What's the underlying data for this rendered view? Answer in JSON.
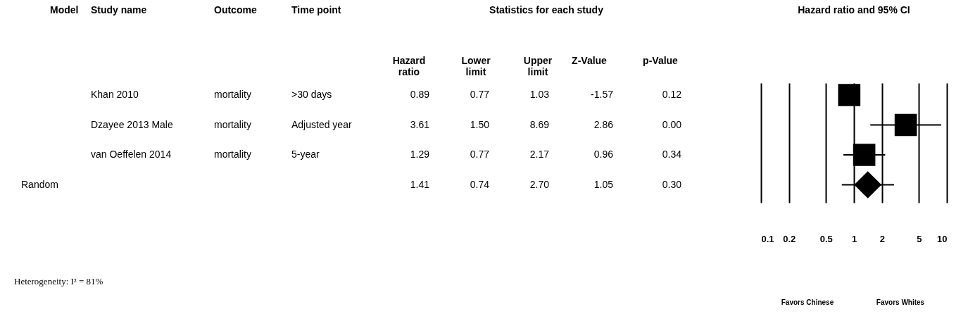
{
  "chart_data": [
    {
      "type": "other",
      "categories": [
        "Model",
        "Study name",
        "Outcome",
        "Time point",
        "Hazard ratio",
        "Lower limit",
        "Upper limit",
        "Z-Value",
        "p-Value"
      ],
      "cell_labels": [
        [
          null,
          "Khan 2010",
          "mortality",
          ">30 days",
          "0.89",
          "0.77",
          "1.03",
          "-1.57",
          "0.12"
        ],
        [
          null,
          "Dzayee 2013 Male",
          "mortality",
          "Adjusted year",
          "3.61",
          "1.50",
          "8.69",
          "2.86",
          "0.00"
        ],
        [
          null,
          "van Oeffelen 2014",
          "mortality",
          "5-year",
          "1.29",
          "0.77",
          "2.17",
          "0.96",
          "0.34"
        ],
        [
          "Random",
          null,
          null,
          null,
          "1.41",
          "0.74",
          "2.70",
          "1.05",
          "0.30"
        ]
      ],
      "annotations": [
        "Statistics for each study",
        "Heterogeneity: I² = 81%"
      ]
    },
    {
      "type": "scatter",
      "orientation": "horizontal",
      "title": "Hazard ratio and 95% CI",
      "categories": [
        null,
        null,
        null,
        null
      ],
      "series": [
        {
          "color": "#000000",
          "marker": "square",
          "values": [
            0.89,
            3.61,
            1.29,
            null
          ],
          "errors": [
            null,
            [
              1.5,
              8.69
            ],
            [
              0.77,
              2.17
            ],
            null
          ]
        },
        {
          "color": "#000000",
          "marker": "diamond",
          "values": [
            null,
            null,
            null,
            1.41
          ],
          "errors": [
            null,
            null,
            null,
            [
              0.74,
              2.7
            ]
          ]
        }
      ],
      "log": "x",
      "xlim": [
        0.1,
        10
      ],
      "xticks": [
        0.1,
        0.2,
        0.5,
        1,
        2,
        5,
        10
      ],
      "grid": "x",
      "legend": false,
      "annotations": [
        "Favors Chinese",
        "Favors Whites"
      ]
    }
  ]
}
